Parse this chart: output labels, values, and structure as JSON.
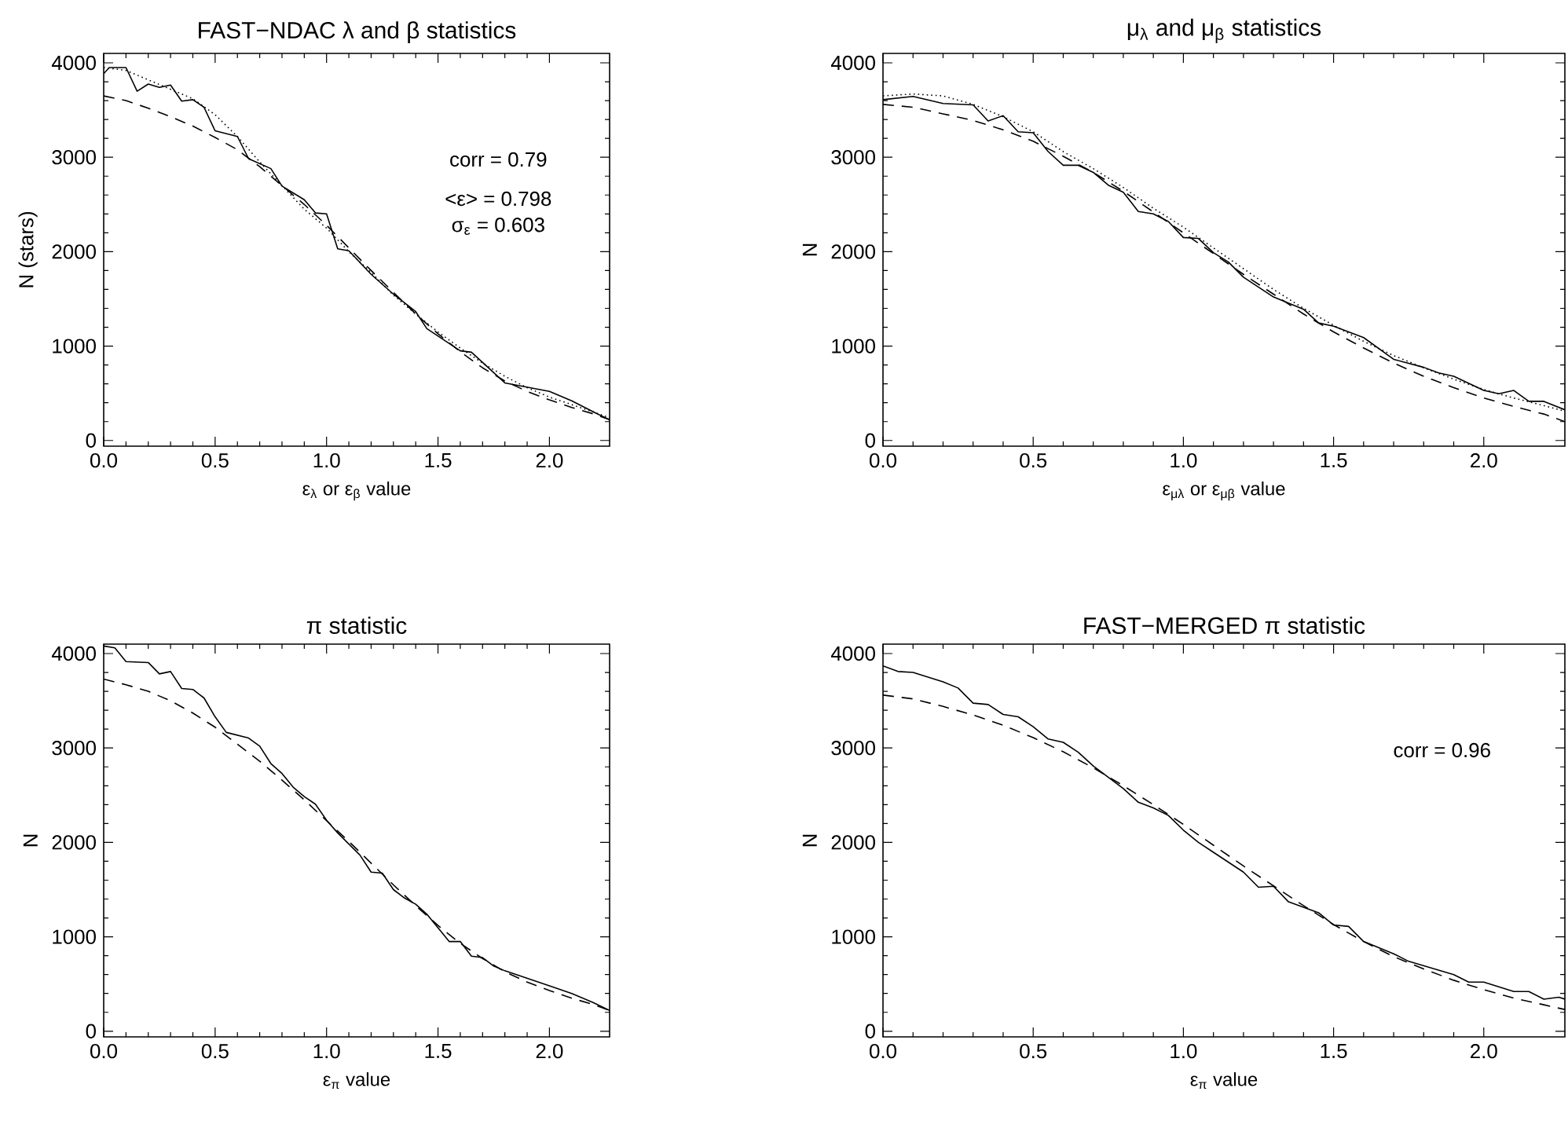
{
  "chart_data": [
    {
      "type": "line",
      "title": "FAST−NDAC λ and β statistics",
      "xlabel": "ε$_{λ}$ or ε$_{β}$ value",
      "ylabel": "N (stars)",
      "xlim": [
        0,
        2.27
      ],
      "ylim": [
        -60,
        4100
      ],
      "xticks": [
        {
          "value": 0,
          "label": "0.0"
        },
        {
          "value": 0.5,
          "label": "0.5"
        },
        {
          "value": 1,
          "label": "1.0"
        },
        {
          "value": 1.5,
          "label": "1.5"
        },
        {
          "value": 2,
          "label": "2.0"
        }
      ],
      "yticks": [
        0,
        1000,
        2000,
        3000,
        4000
      ],
      "annotations": [
        "corr = 0.79",
        "<ε> = 0.798",
        "σ$_{ε}$ = 0.603"
      ],
      "series": [
        {
          "color": "#000000",
          "line_style": "solid",
          "x": [
            0,
            0.025,
            0.1,
            0.15,
            0.2,
            0.25,
            0.3,
            0.35,
            0.4,
            0.45,
            0.5,
            0.6,
            0.65,
            0.75,
            0.8,
            0.9,
            0.95,
            1.0,
            1.05,
            1.1,
            1.2,
            1.3,
            1.4,
            1.45,
            1.6,
            1.65,
            1.8,
            2.0,
            2.1,
            2.2,
            2.27
          ],
          "values": [
            3885,
            3950,
            3950,
            3700,
            3775,
            3740,
            3765,
            3595,
            3610,
            3530,
            3280,
            3220,
            2985,
            2880,
            2695,
            2550,
            2410,
            2400,
            2030,
            2010,
            1760,
            1550,
            1365,
            1185,
            950,
            935,
            610,
            520,
            420,
            300,
            220
          ]
        },
        {
          "color": "#000000",
          "line_style": "dashed",
          "x": [
            0,
            0.1,
            0.2,
            0.3,
            0.4,
            0.5,
            0.6,
            0.7,
            0.8,
            0.9,
            1.0,
            1.1,
            1.2,
            1.3,
            1.4,
            1.5,
            1.6,
            1.7,
            1.8,
            1.9,
            2.0,
            2.1,
            2.2,
            2.27
          ],
          "values": [
            3650,
            3600,
            3520,
            3430,
            3330,
            3210,
            3080,
            2900,
            2700,
            2500,
            2280,
            2040,
            1800,
            1570,
            1340,
            1130,
            940,
            770,
            630,
            520,
            430,
            350,
            280,
            220
          ]
        },
        {
          "color": "#000000",
          "line_style": "dotted",
          "x": [
            0,
            0.1,
            0.2,
            0.3,
            0.4,
            0.5,
            0.6,
            0.7,
            0.8,
            0.9,
            1.0,
            1.1,
            1.2,
            1.3,
            1.4,
            1.5,
            1.6,
            1.7,
            1.8,
            1.9,
            2.0,
            2.1,
            2.2,
            2.27
          ],
          "values": [
            3950,
            3920,
            3820,
            3720,
            3620,
            3450,
            3220,
            2950,
            2700,
            2450,
            2250,
            2000,
            1780,
            1540,
            1340,
            1150,
            980,
            820,
            680,
            560,
            460,
            380,
            300,
            240
          ]
        }
      ]
    },
    {
      "type": "line",
      "title": "μ$_{λ}$ and μ$_{β}$ statistics",
      "xlabel": "ε$_{μλ}$ or ε$_{μβ}$ value",
      "ylabel": "N",
      "xlim": [
        0,
        2.27
      ],
      "ylim": [
        -60,
        4100
      ],
      "xticks": [
        {
          "value": 0,
          "label": "0.0"
        },
        {
          "value": 0.5,
          "label": "0.5"
        },
        {
          "value": 1,
          "label": "1.0"
        },
        {
          "value": 1.5,
          "label": "1.5"
        },
        {
          "value": 2,
          "label": "2.0"
        }
      ],
      "yticks": [
        0,
        1000,
        2000,
        3000,
        4000
      ],
      "series": [
        {
          "color": "#000000",
          "line_style": "solid",
          "x": [
            0,
            0.1,
            0.2,
            0.3,
            0.35,
            0.4,
            0.45,
            0.5,
            0.55,
            0.6,
            0.65,
            0.7,
            0.75,
            0.8,
            0.85,
            0.9,
            0.95,
            1.0,
            1.05,
            1.1,
            1.15,
            1.2,
            1.3,
            1.4,
            1.45,
            1.5,
            1.6,
            1.7,
            1.8,
            1.85,
            1.9,
            2.0,
            2.05,
            2.1,
            2.15,
            2.2,
            2.27
          ],
          "values": [
            3610,
            3645,
            3570,
            3555,
            3385,
            3440,
            3270,
            3260,
            3060,
            2915,
            2915,
            2840,
            2705,
            2630,
            2425,
            2400,
            2320,
            2150,
            2140,
            1990,
            1890,
            1730,
            1520,
            1390,
            1245,
            1210,
            1090,
            860,
            775,
            715,
            680,
            530,
            495,
            530,
            415,
            415,
            325
          ]
        },
        {
          "color": "#000000",
          "line_style": "dashed",
          "x": [
            0,
            0.1,
            0.2,
            0.3,
            0.4,
            0.5,
            0.6,
            0.7,
            0.8,
            0.9,
            1.0,
            1.1,
            1.2,
            1.3,
            1.4,
            1.5,
            1.6,
            1.7,
            1.8,
            1.9,
            2.0,
            2.1,
            2.2,
            2.27
          ],
          "values": [
            3560,
            3530,
            3460,
            3390,
            3290,
            3170,
            3010,
            2840,
            2640,
            2420,
            2200,
            1980,
            1760,
            1550,
            1340,
            1150,
            980,
            820,
            680,
            560,
            450,
            360,
            280,
            200
          ]
        },
        {
          "color": "#000000",
          "line_style": "dotted",
          "x": [
            0,
            0.1,
            0.2,
            0.3,
            0.4,
            0.5,
            0.6,
            0.7,
            0.8,
            0.9,
            1.0,
            1.1,
            1.2,
            1.3,
            1.4,
            1.5,
            1.6,
            1.7,
            1.8,
            1.9,
            2.0,
            2.1,
            2.2,
            2.27
          ],
          "values": [
            3650,
            3670,
            3650,
            3560,
            3430,
            3270,
            3060,
            2880,
            2680,
            2460,
            2260,
            2040,
            1820,
            1600,
            1400,
            1220,
            1050,
            900,
            770,
            650,
            540,
            450,
            370,
            310
          ]
        }
      ]
    },
    {
      "type": "line",
      "title": "π statistic",
      "xlabel": "ε$_{π}$ value",
      "ylabel": "N",
      "xlim": [
        0,
        2.27
      ],
      "ylim": [
        -60,
        4100
      ],
      "xticks": [
        {
          "value": 0,
          "label": "0.0"
        },
        {
          "value": 0.5,
          "label": "0.5"
        },
        {
          "value": 1,
          "label": "1.0"
        },
        {
          "value": 1.5,
          "label": "1.5"
        },
        {
          "value": 2,
          "label": "2.0"
        }
      ],
      "yticks": [
        0,
        1000,
        2000,
        3000,
        4000
      ],
      "series": [
        {
          "color": "#000000",
          "line_style": "solid",
          "x": [
            0,
            0.05,
            0.1,
            0.2,
            0.25,
            0.3,
            0.35,
            0.4,
            0.45,
            0.5,
            0.55,
            0.65,
            0.7,
            0.75,
            0.8,
            0.85,
            0.9,
            0.95,
            1.0,
            1.05,
            1.15,
            1.2,
            1.25,
            1.3,
            1.35,
            1.4,
            1.45,
            1.5,
            1.55,
            1.6,
            1.65,
            1.7,
            1.75,
            1.8,
            2.0,
            2.1,
            2.2,
            2.27
          ],
          "values": [
            4080,
            4060,
            3915,
            3905,
            3785,
            3810,
            3630,
            3620,
            3530,
            3330,
            3165,
            3105,
            3020,
            2835,
            2730,
            2585,
            2485,
            2405,
            2235,
            2100,
            1865,
            1685,
            1675,
            1500,
            1410,
            1345,
            1240,
            1095,
            950,
            950,
            795,
            780,
            690,
            640,
            480,
            400,
            300,
            220
          ]
        },
        {
          "color": "#000000",
          "line_style": "dashed",
          "x": [
            0,
            0.1,
            0.2,
            0.3,
            0.4,
            0.5,
            0.6,
            0.7,
            0.8,
            0.9,
            1.0,
            1.1,
            1.2,
            1.3,
            1.4,
            1.5,
            1.6,
            1.7,
            1.8,
            1.9,
            2.0,
            2.1,
            2.2,
            2.27
          ],
          "values": [
            3730,
            3670,
            3600,
            3500,
            3370,
            3220,
            3040,
            2860,
            2660,
            2450,
            2230,
            2010,
            1780,
            1550,
            1330,
            1120,
            930,
            770,
            630,
            520,
            430,
            350,
            280,
            220
          ]
        }
      ]
    },
    {
      "type": "line",
      "title": "FAST−MERGED π statistic",
      "xlabel": "ε$_{π}$ value",
      "ylabel": "N",
      "xlim": [
        0,
        2.27
      ],
      "ylim": [
        -60,
        4100
      ],
      "xticks": [
        {
          "value": 0,
          "label": "0.0"
        },
        {
          "value": 0.5,
          "label": "0.5"
        },
        {
          "value": 1,
          "label": "1.0"
        },
        {
          "value": 1.5,
          "label": "1.5"
        },
        {
          "value": 2,
          "label": "2.0"
        }
      ],
      "yticks": [
        0,
        1000,
        2000,
        3000,
        4000
      ],
      "annotations": [
        "corr = 0.96"
      ],
      "series": [
        {
          "color": "#000000",
          "line_style": "solid",
          "x": [
            0,
            0.05,
            0.1,
            0.2,
            0.25,
            0.3,
            0.35,
            0.4,
            0.45,
            0.5,
            0.55,
            0.6,
            0.65,
            0.7,
            0.8,
            0.85,
            0.9,
            0.95,
            1.0,
            1.05,
            1.1,
            1.2,
            1.25,
            1.3,
            1.35,
            1.45,
            1.5,
            1.55,
            1.6,
            1.7,
            1.75,
            1.9,
            1.95,
            2.0,
            2.05,
            2.1,
            2.15,
            2.2,
            2.25,
            2.27
          ],
          "values": [
            3870,
            3810,
            3800,
            3700,
            3635,
            3475,
            3460,
            3355,
            3330,
            3225,
            3095,
            3060,
            2955,
            2810,
            2570,
            2425,
            2365,
            2285,
            2130,
            2000,
            1895,
            1685,
            1525,
            1535,
            1370,
            1255,
            1125,
            1110,
            950,
            820,
            740,
            600,
            520,
            520,
            470,
            420,
            420,
            340,
            360,
            340
          ]
        },
        {
          "color": "#000000",
          "line_style": "dashed",
          "x": [
            0,
            0.1,
            0.2,
            0.3,
            0.4,
            0.5,
            0.6,
            0.7,
            0.8,
            0.9,
            1.0,
            1.1,
            1.2,
            1.3,
            1.4,
            1.5,
            1.6,
            1.7,
            1.8,
            1.9,
            2.0,
            2.1,
            2.2,
            2.27
          ],
          "values": [
            3560,
            3520,
            3440,
            3350,
            3240,
            3110,
            2960,
            2790,
            2600,
            2400,
            2190,
            1970,
            1750,
            1540,
            1330,
            1130,
            950,
            790,
            660,
            540,
            440,
            350,
            280,
            230
          ]
        }
      ]
    }
  ]
}
